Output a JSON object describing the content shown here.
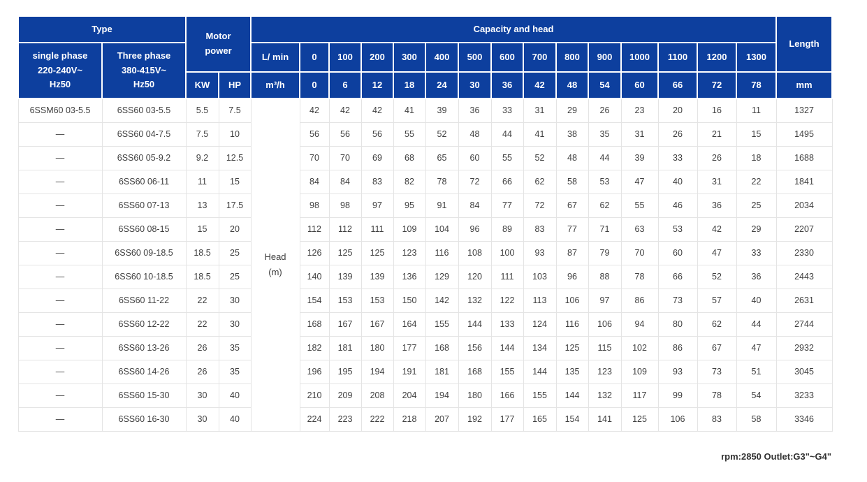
{
  "page": {
    "footer_note": "rpm:2850 Outlet:G3\"~G4\""
  },
  "theme": {
    "header_bg": "#0d3f9e",
    "header_text": "#ffffff",
    "body_text": "#404040",
    "grid_line": "#e4e4e4"
  },
  "header": {
    "type_label": "Type",
    "motor_power_lines": [
      "Motor",
      "power"
    ],
    "capacity_label": "Capacity and head",
    "length_label": "Length",
    "length_unit": "mm",
    "single_phase_lines": [
      "single phase",
      "220-240V~",
      "Hz50"
    ],
    "three_phase_lines": [
      "Three phase",
      "380-415V~",
      "Hz50"
    ],
    "kw_label": "KW",
    "hp_label": "HP",
    "lmin_label": "L/ min",
    "m3h_label": "m³/h",
    "head_label_lines": [
      "Head",
      "(m)"
    ],
    "capacity": {
      "l_min": [
        "0",
        "100",
        "200",
        "300",
        "400",
        "500",
        "600",
        "700",
        "800",
        "900",
        "1000",
        "1100",
        "1200",
        "1300"
      ],
      "m3_h": [
        "0",
        "6",
        "12",
        "18",
        "24",
        "30",
        "36",
        "42",
        "48",
        "54",
        "60",
        "66",
        "72",
        "78"
      ]
    }
  },
  "rows": [
    {
      "single": "6SSM60 03-5.5",
      "three": "6SS60 03-5.5",
      "kw": "5.5",
      "hp": "7.5",
      "values": [
        42,
        42,
        42,
        41,
        39,
        36,
        33,
        31,
        29,
        26,
        23,
        20,
        16,
        11
      ],
      "length": "1327"
    },
    {
      "single": "—",
      "three": "6SS60 04-7.5",
      "kw": "7.5",
      "hp": "10",
      "values": [
        56,
        56,
        56,
        55,
        52,
        48,
        44,
        41,
        38,
        35,
        31,
        26,
        21,
        15
      ],
      "length": "1495"
    },
    {
      "single": "—",
      "three": "6SS60 05-9.2",
      "kw": "9.2",
      "hp": "12.5",
      "values": [
        70,
        70,
        69,
        68,
        65,
        60,
        55,
        52,
        48,
        44,
        39,
        33,
        26,
        18
      ],
      "length": "1688"
    },
    {
      "single": "—",
      "three": "6SS60 06-11",
      "kw": "11",
      "hp": "15",
      "values": [
        84,
        84,
        83,
        82,
        78,
        72,
        66,
        62,
        58,
        53,
        47,
        40,
        31,
        22
      ],
      "length": "1841"
    },
    {
      "single": "—",
      "three": "6SS60 07-13",
      "kw": "13",
      "hp": "17.5",
      "values": [
        98,
        98,
        97,
        95,
        91,
        84,
        77,
        72,
        67,
        62,
        55,
        46,
        36,
        25
      ],
      "length": "2034"
    },
    {
      "single": "—",
      "three": "6SS60 08-15",
      "kw": "15",
      "hp": "20",
      "values": [
        112,
        112,
        111,
        109,
        104,
        96,
        89,
        83,
        77,
        71,
        63,
        53,
        42,
        29
      ],
      "length": "2207"
    },
    {
      "single": "—",
      "three": "6SS60 09-18.5",
      "kw": "18.5",
      "hp": "25",
      "values": [
        126,
        125,
        125,
        123,
        116,
        108,
        100,
        93,
        87,
        79,
        70,
        60,
        47,
        33
      ],
      "length": "2330"
    },
    {
      "single": "—",
      "three": "6SS60 10-18.5",
      "kw": "18.5",
      "hp": "25",
      "values": [
        140,
        139,
        139,
        136,
        129,
        120,
        111,
        103,
        96,
        88,
        78,
        66,
        52,
        36
      ],
      "length": "2443"
    },
    {
      "single": "—",
      "three": "6SS60 11-22",
      "kw": "22",
      "hp": "30",
      "values": [
        154,
        153,
        153,
        150,
        142,
        132,
        122,
        113,
        106,
        97,
        86,
        73,
        57,
        40
      ],
      "length": "2631"
    },
    {
      "single": "—",
      "three": "6SS60 12-22",
      "kw": "22",
      "hp": "30",
      "values": [
        168,
        167,
        167,
        164,
        155,
        144,
        133,
        124,
        116,
        106,
        94,
        80,
        62,
        44
      ],
      "length": "2744"
    },
    {
      "single": "—",
      "three": "6SS60 13-26",
      "kw": "26",
      "hp": "35",
      "values": [
        182,
        181,
        180,
        177,
        168,
        156,
        144,
        134,
        125,
        115,
        102,
        86,
        67,
        47
      ],
      "length": "2932"
    },
    {
      "single": "—",
      "three": "6SS60 14-26",
      "kw": "26",
      "hp": "35",
      "values": [
        196,
        195,
        194,
        191,
        181,
        168,
        155,
        144,
        135,
        123,
        109,
        93,
        73,
        51
      ],
      "length": "3045"
    },
    {
      "single": "—",
      "three": "6SS60 15-30",
      "kw": "30",
      "hp": "40",
      "values": [
        210,
        209,
        208,
        204,
        194,
        180,
        166,
        155,
        144,
        132,
        117,
        99,
        78,
        54
      ],
      "length": "3233"
    },
    {
      "single": "—",
      "three": "6SS60 16-30",
      "kw": "30",
      "hp": "40",
      "values": [
        224,
        223,
        222,
        218,
        207,
        192,
        177,
        165,
        154,
        141,
        125,
        106,
        83,
        58
      ],
      "length": "3346"
    }
  ],
  "chart_data": {
    "type": "table",
    "title": "Capacity and head",
    "x_flow_l_min": [
      0,
      100,
      200,
      300,
      400,
      500,
      600,
      700,
      800,
      900,
      1000,
      1100,
      1200,
      1300
    ],
    "x_flow_m3_h": [
      0,
      6,
      12,
      18,
      24,
      30,
      36,
      42,
      48,
      54,
      60,
      66,
      72,
      78
    ],
    "y_unit": "Head (m)",
    "series": [
      {
        "name": "6SS60 03-5.5",
        "single_phase_model": "6SSM60 03-5.5",
        "kw": 5.5,
        "hp": 7.5,
        "head_m": [
          42,
          42,
          42,
          41,
          39,
          36,
          33,
          31,
          29,
          26,
          23,
          20,
          16,
          11
        ],
        "length_mm": 1327
      },
      {
        "name": "6SS60 04-7.5",
        "single_phase_model": null,
        "kw": 7.5,
        "hp": 10,
        "head_m": [
          56,
          56,
          56,
          55,
          52,
          48,
          44,
          41,
          38,
          35,
          31,
          26,
          21,
          15
        ],
        "length_mm": 1495
      },
      {
        "name": "6SS60 05-9.2",
        "single_phase_model": null,
        "kw": 9.2,
        "hp": 12.5,
        "head_m": [
          70,
          70,
          69,
          68,
          65,
          60,
          55,
          52,
          48,
          44,
          39,
          33,
          26,
          18
        ],
        "length_mm": 1688
      },
      {
        "name": "6SS60 06-11",
        "single_phase_model": null,
        "kw": 11,
        "hp": 15,
        "head_m": [
          84,
          84,
          83,
          82,
          78,
          72,
          66,
          62,
          58,
          53,
          47,
          40,
          31,
          22
        ],
        "length_mm": 1841
      },
      {
        "name": "6SS60 07-13",
        "single_phase_model": null,
        "kw": 13,
        "hp": 17.5,
        "head_m": [
          98,
          98,
          97,
          95,
          91,
          84,
          77,
          72,
          67,
          62,
          55,
          46,
          36,
          25
        ],
        "length_mm": 2034
      },
      {
        "name": "6SS60 08-15",
        "single_phase_model": null,
        "kw": 15,
        "hp": 20,
        "head_m": [
          112,
          112,
          111,
          109,
          104,
          96,
          89,
          83,
          77,
          71,
          63,
          53,
          42,
          29
        ],
        "length_mm": 2207
      },
      {
        "name": "6SS60 09-18.5",
        "single_phase_model": null,
        "kw": 18.5,
        "hp": 25,
        "head_m": [
          126,
          125,
          125,
          123,
          116,
          108,
          100,
          93,
          87,
          79,
          70,
          60,
          47,
          33
        ],
        "length_mm": 2330
      },
      {
        "name": "6SS60 10-18.5",
        "single_phase_model": null,
        "kw": 18.5,
        "hp": 25,
        "head_m": [
          140,
          139,
          139,
          136,
          129,
          120,
          111,
          103,
          96,
          88,
          78,
          66,
          52,
          36
        ],
        "length_mm": 2443
      },
      {
        "name": "6SS60 11-22",
        "single_phase_model": null,
        "kw": 22,
        "hp": 30,
        "head_m": [
          154,
          153,
          153,
          150,
          142,
          132,
          122,
          113,
          106,
          97,
          86,
          73,
          57,
          40
        ],
        "length_mm": 2631
      },
      {
        "name": "6SS60 12-22",
        "single_phase_model": null,
        "kw": 22,
        "hp": 30,
        "head_m": [
          168,
          167,
          167,
          164,
          155,
          144,
          133,
          124,
          116,
          106,
          94,
          80,
          62,
          44
        ],
        "length_mm": 2744
      },
      {
        "name": "6SS60 13-26",
        "single_phase_model": null,
        "kw": 26,
        "hp": 35,
        "head_m": [
          182,
          181,
          180,
          177,
          168,
          156,
          144,
          134,
          125,
          115,
          102,
          86,
          67,
          47
        ],
        "length_mm": 2932
      },
      {
        "name": "6SS60 14-26",
        "single_phase_model": null,
        "kw": 26,
        "hp": 35,
        "head_m": [
          196,
          195,
          194,
          191,
          181,
          168,
          155,
          144,
          135,
          123,
          109,
          93,
          73,
          51
        ],
        "length_mm": 3045
      },
      {
        "name": "6SS60 15-30",
        "single_phase_model": null,
        "kw": 30,
        "hp": 40,
        "head_m": [
          210,
          209,
          208,
          204,
          194,
          180,
          166,
          155,
          144,
          132,
          117,
          99,
          78,
          54
        ],
        "length_mm": 3233
      },
      {
        "name": "6SS60 16-30",
        "single_phase_model": null,
        "kw": 30,
        "hp": 40,
        "head_m": [
          224,
          223,
          222,
          218,
          207,
          192,
          177,
          165,
          154,
          141,
          125,
          106,
          83,
          58
        ],
        "length_mm": 3346
      }
    ],
    "note": "rpm:2850 Outlet:G3\"~G4\""
  }
}
